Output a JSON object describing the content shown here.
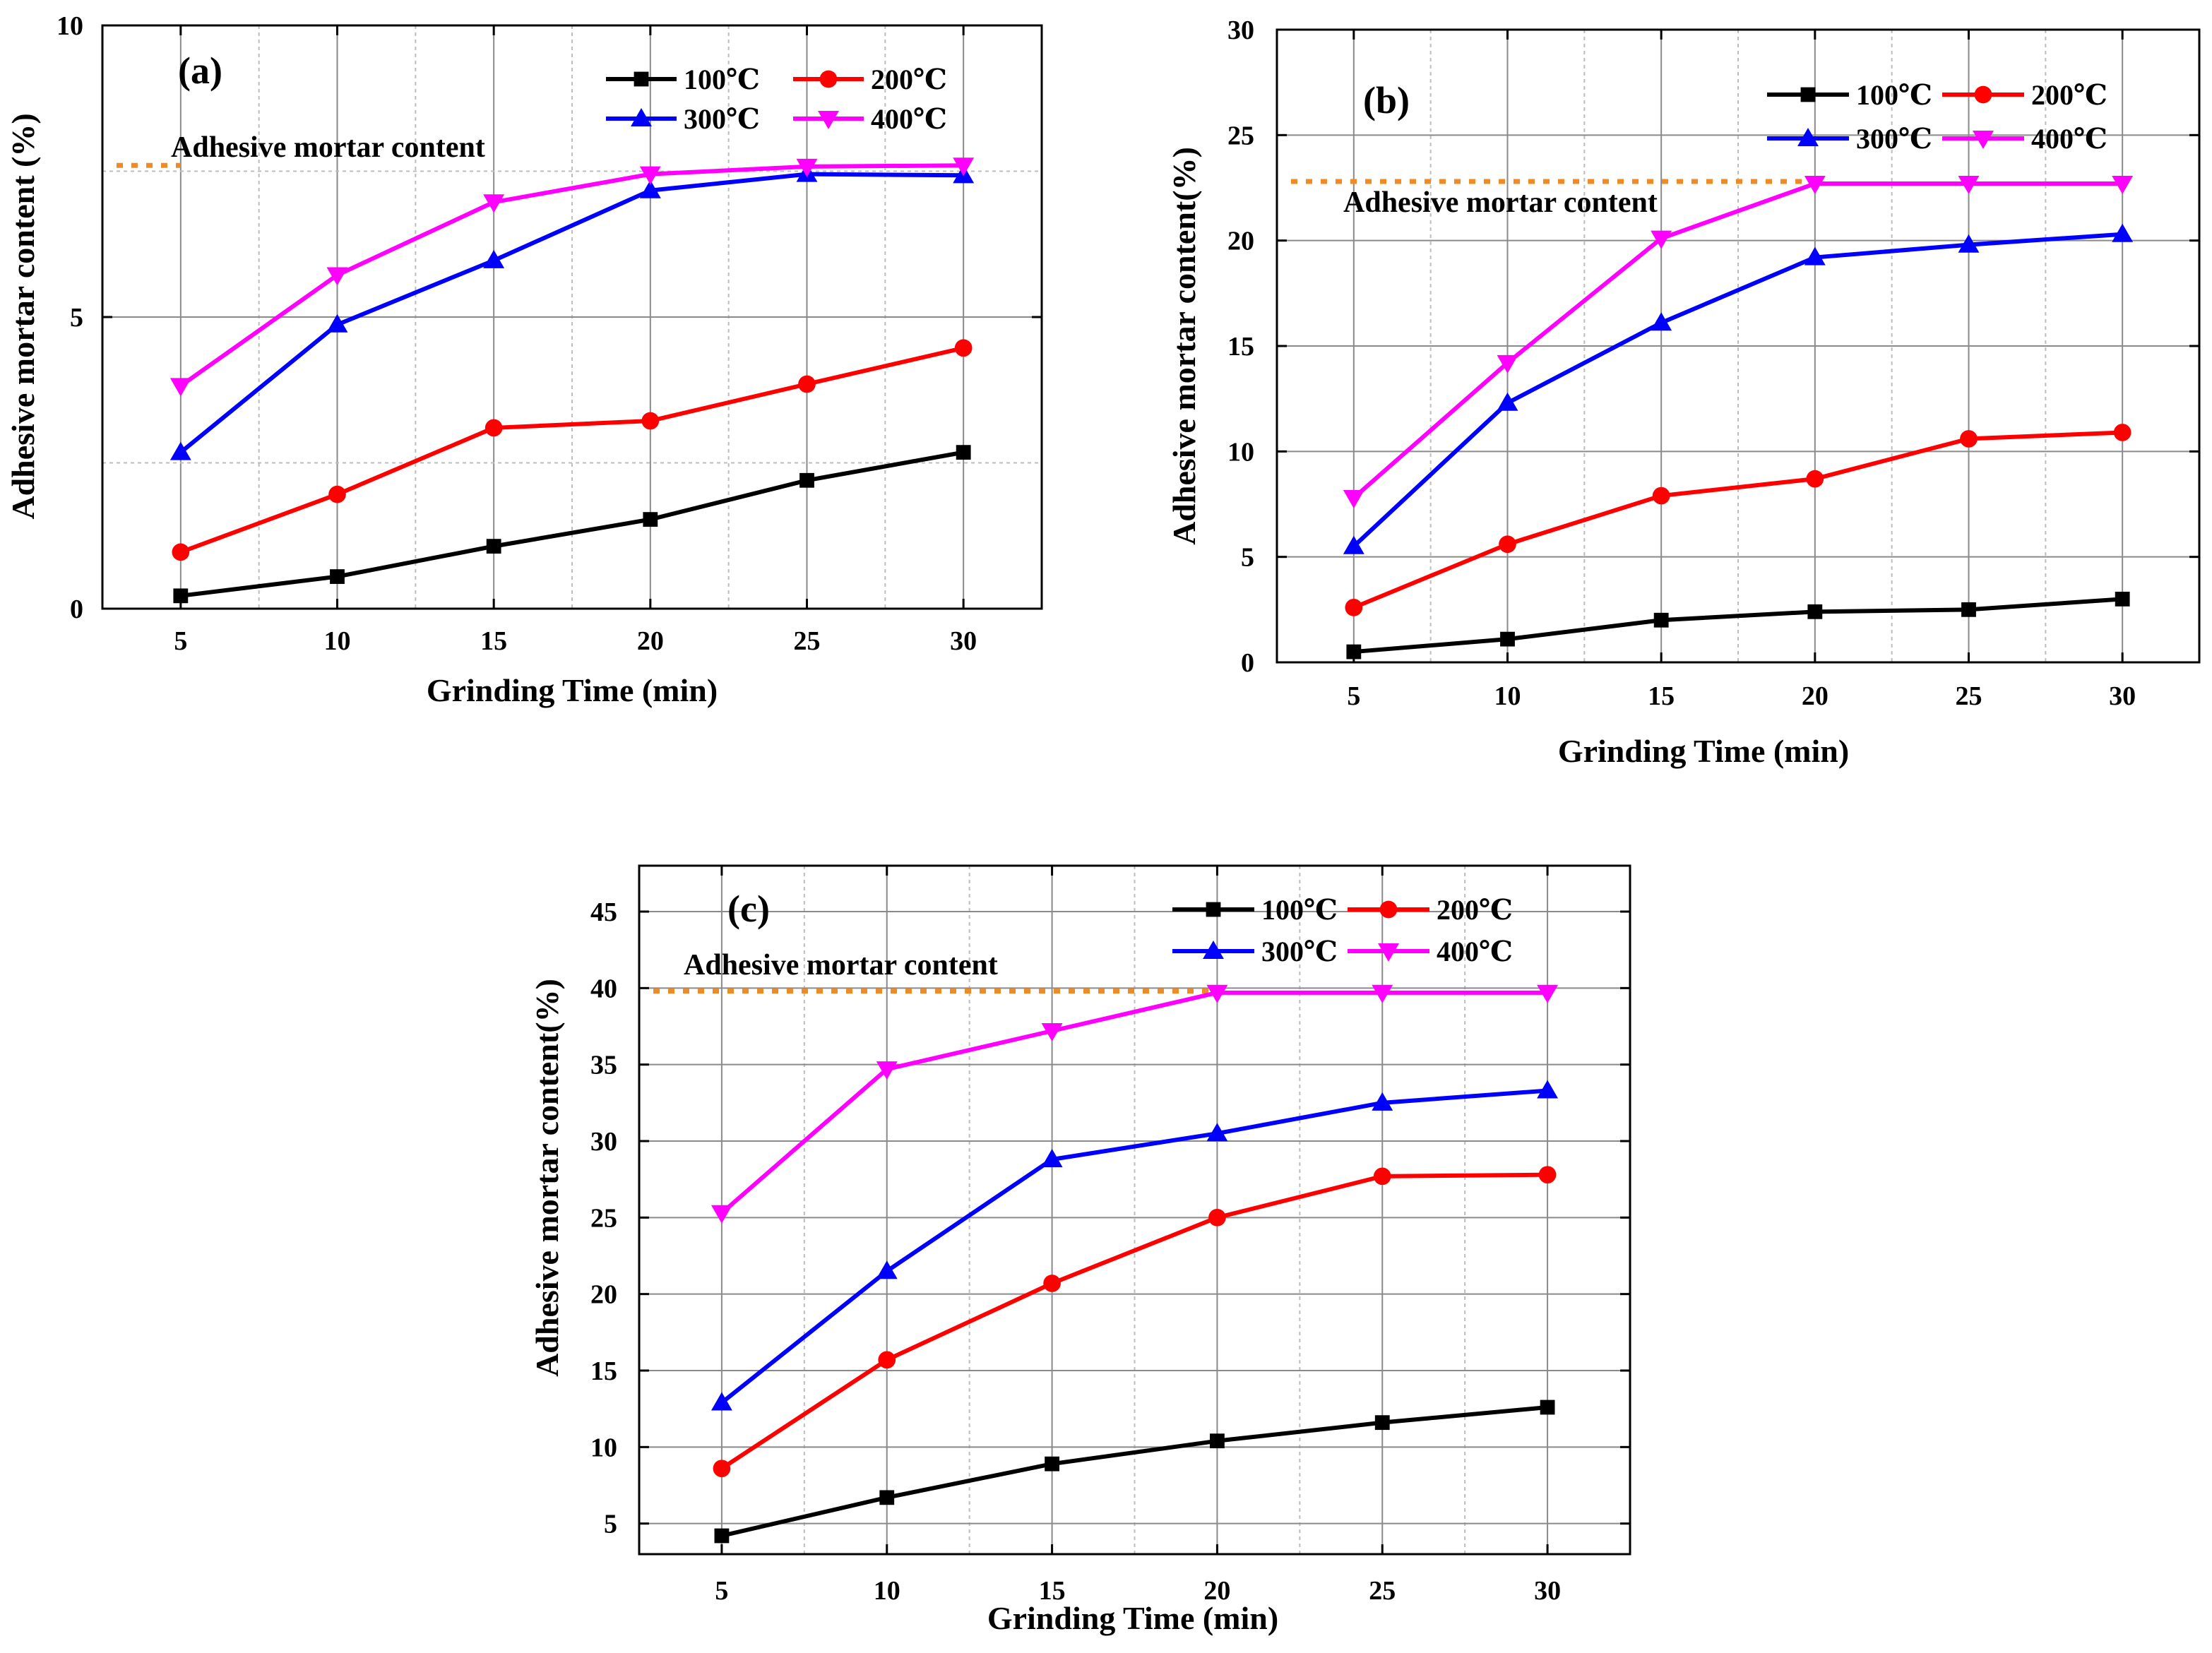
{
  "figure_id": "Adhesive mortar content vs grinding time",
  "chart_data": [
    {
      "type": "line",
      "panel_label": "(a)",
      "xlabel": "Grinding Time (min)",
      "ylabel": "Adhesive mortar content (%)",
      "x": [
        5,
        10,
        15,
        20,
        25,
        30
      ],
      "xlim": [
        2.5,
        32.5
      ],
      "ylim": [
        0,
        10
      ],
      "yticks": [
        0,
        5,
        10
      ],
      "ytick_labels": [
        "0",
        "5",
        "10"
      ],
      "grid": true,
      "legend": "top-right",
      "reference_line": {
        "label": "Adhesive mortar content",
        "value": 7.6,
        "color": "#f08a24"
      },
      "series": [
        {
          "name": "100℃",
          "color": "#000000",
          "marker": "square",
          "values": [
            0.22,
            0.55,
            1.07,
            1.53,
            2.2,
            2.68
          ]
        },
        {
          "name": "200℃",
          "color": "#ff0000",
          "marker": "circle",
          "values": [
            0.97,
            1.96,
            3.1,
            3.22,
            3.85,
            4.47
          ]
        },
        {
          "name": "300℃",
          "color": "#0000ff",
          "marker": "triangle-up",
          "values": [
            2.68,
            4.87,
            5.97,
            7.17,
            7.45,
            7.43
          ]
        },
        {
          "name": "400℃",
          "color": "#ff00ff",
          "marker": "triangle-down",
          "values": [
            3.82,
            5.72,
            6.97,
            7.45,
            7.58,
            7.6
          ]
        }
      ]
    },
    {
      "type": "line",
      "panel_label": "(b)",
      "xlabel": "Grinding Time (min)",
      "ylabel": "Adhesive mortar content(%)",
      "x": [
        5,
        10,
        15,
        20,
        25,
        30
      ],
      "xlim": [
        2.5,
        32.5
      ],
      "ylim": [
        0,
        30
      ],
      "yticks": [
        0,
        5,
        10,
        15,
        20,
        25,
        30
      ],
      "ytick_labels": [
        "0",
        "5",
        "10",
        "15",
        "20",
        "25",
        "30"
      ],
      "grid": true,
      "legend": "top-right",
      "reference_line": {
        "label": "Adhesive mortar content",
        "value": 22.8,
        "color": "#f08a24"
      },
      "series": [
        {
          "name": "100℃",
          "color": "#000000",
          "marker": "square",
          "values": [
            0.5,
            1.1,
            2.0,
            2.4,
            2.5,
            3.0
          ]
        },
        {
          "name": "200℃",
          "color": "#ff0000",
          "marker": "circle",
          "values": [
            2.6,
            5.6,
            7.9,
            8.7,
            10.6,
            10.9
          ]
        },
        {
          "name": "300℃",
          "color": "#0000ff",
          "marker": "triangle-up",
          "values": [
            5.5,
            12.3,
            16.1,
            19.2,
            19.8,
            20.3
          ]
        },
        {
          "name": "400℃",
          "color": "#ff00ff",
          "marker": "triangle-down",
          "values": [
            7.8,
            14.2,
            20.1,
            22.7,
            22.7,
            22.7
          ]
        }
      ]
    },
    {
      "type": "line",
      "panel_label": "(c)",
      "xlabel": "Grinding Time (min)",
      "ylabel": "Adhesive mortar content(%)",
      "x": [
        5,
        10,
        15,
        20,
        25,
        30
      ],
      "xlim": [
        2.5,
        32.5
      ],
      "ylim": [
        3,
        48
      ],
      "yticks": [
        5,
        10,
        15,
        20,
        25,
        30,
        35,
        40,
        45
      ],
      "ytick_labels": [
        "5",
        "10",
        "15",
        "20",
        "25",
        "30",
        "35",
        "40",
        "45"
      ],
      "grid": true,
      "legend": "top-right",
      "reference_line": {
        "label": "Adhesive mortar content",
        "value": 39.8,
        "color": "#f08a24"
      },
      "series": [
        {
          "name": "100℃",
          "color": "#000000",
          "marker": "square",
          "values": [
            4.2,
            6.7,
            8.9,
            10.4,
            11.6,
            12.6
          ]
        },
        {
          "name": "200℃",
          "color": "#ff0000",
          "marker": "circle",
          "values": [
            8.6,
            15.7,
            20.7,
            25.0,
            27.7,
            27.8
          ]
        },
        {
          "name": "300℃",
          "color": "#0000ff",
          "marker": "triangle-up",
          "values": [
            12.9,
            21.5,
            28.8,
            30.5,
            32.5,
            33.3
          ]
        },
        {
          "name": "400℃",
          "color": "#ff00ff",
          "marker": "triangle-down",
          "values": [
            25.3,
            34.7,
            37.2,
            39.7,
            39.7,
            39.7
          ]
        }
      ]
    }
  ]
}
